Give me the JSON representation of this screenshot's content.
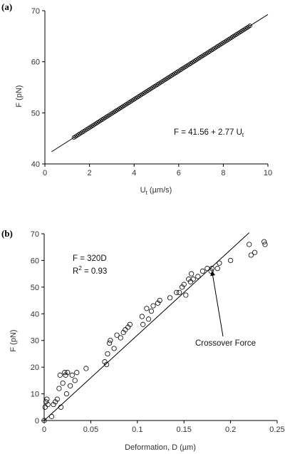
{
  "chart_data": [
    {
      "panel": "(a)",
      "type": "scatter",
      "xlabel_main": "U",
      "xlabel_sub": "t",
      "xlabel_unit": " (µm/s)",
      "ylabel": "F (pN)",
      "xlim": [
        0,
        10
      ],
      "ylim": [
        40,
        70
      ],
      "xticks": [
        0,
        2,
        4,
        6,
        8,
        10
      ],
      "yticks": [
        40,
        50,
        60,
        70
      ],
      "equation": "F = 41.56 + 2.77 U",
      "equation_sub": "t",
      "fit": {
        "intercept": 41.56,
        "slope": 2.77,
        "x_range": [
          0.3,
          10
        ]
      },
      "points": {
        "x_start": 1.3,
        "x_end": 9.2,
        "count": 120
      }
    },
    {
      "panel": "(b)",
      "type": "scatter",
      "xlabel": "Deformation, D (µm)",
      "ylabel": "F (pN)",
      "xlim": [
        0,
        0.25
      ],
      "ylim": [
        0,
        70
      ],
      "xticks": [
        0,
        0.05,
        0.1,
        0.15,
        0.2,
        0.25
      ],
      "xtick_labels": [
        "0",
        "0.05",
        "0.1",
        "0.15",
        "0.2",
        "0.25"
      ],
      "yticks": [
        0,
        10,
        20,
        30,
        40,
        50,
        60,
        70
      ],
      "equation": "F = 320D",
      "r2_label": "R",
      "r2_sup": "2",
      "r2_value": " = 0.93",
      "fit": {
        "slope": 320,
        "x_range": [
          0,
          0.22
        ]
      },
      "annotation": "Crossover Force",
      "annotation_target": [
        0.18,
        57.5
      ],
      "points": [
        [
          0,
          0
        ],
        [
          0.001,
          5
        ],
        [
          0.002,
          7
        ],
        [
          0.003,
          8
        ],
        [
          0.004,
          6
        ],
        [
          0.008,
          1.5
        ],
        [
          0.01,
          6
        ],
        [
          0.012,
          7
        ],
        [
          0.014,
          8
        ],
        [
          0.016,
          12
        ],
        [
          0.017,
          17
        ],
        [
          0.018,
          5
        ],
        [
          0.02,
          14
        ],
        [
          0.022,
          18
        ],
        [
          0.023,
          17
        ],
        [
          0.024,
          10
        ],
        [
          0.025,
          18
        ],
        [
          0.028,
          13
        ],
        [
          0.03,
          17
        ],
        [
          0.033,
          15
        ],
        [
          0.035,
          18
        ],
        [
          0.045,
          19.5
        ],
        [
          0.065,
          22
        ],
        [
          0.067,
          21
        ],
        [
          0.068,
          25
        ],
        [
          0.07,
          29
        ],
        [
          0.071,
          30
        ],
        [
          0.075,
          27
        ],
        [
          0.078,
          32
        ],
        [
          0.082,
          31
        ],
        [
          0.085,
          33
        ],
        [
          0.087,
          34
        ],
        [
          0.09,
          35
        ],
        [
          0.092,
          36
        ],
        [
          0.105,
          39
        ],
        [
          0.106,
          36
        ],
        [
          0.11,
          42
        ],
        [
          0.112,
          38
        ],
        [
          0.115,
          41
        ],
        [
          0.117,
          43
        ],
        [
          0.122,
          44
        ],
        [
          0.124,
          45
        ],
        [
          0.135,
          46
        ],
        [
          0.142,
          48
        ],
        [
          0.145,
          48
        ],
        [
          0.148,
          50
        ],
        [
          0.15,
          51
        ],
        [
          0.152,
          47
        ],
        [
          0.155,
          53
        ],
        [
          0.157,
          52
        ],
        [
          0.158,
          55
        ],
        [
          0.16,
          53
        ],
        [
          0.165,
          54
        ],
        [
          0.17,
          56
        ],
        [
          0.175,
          57
        ],
        [
          0.179,
          56
        ],
        [
          0.18,
          57
        ],
        [
          0.186,
          57
        ],
        [
          0.188,
          59
        ],
        [
          0.2,
          60
        ],
        [
          0.22,
          66
        ],
        [
          0.222,
          62
        ],
        [
          0.226,
          63
        ],
        [
          0.236,
          67
        ],
        [
          0.237,
          66
        ]
      ]
    }
  ]
}
